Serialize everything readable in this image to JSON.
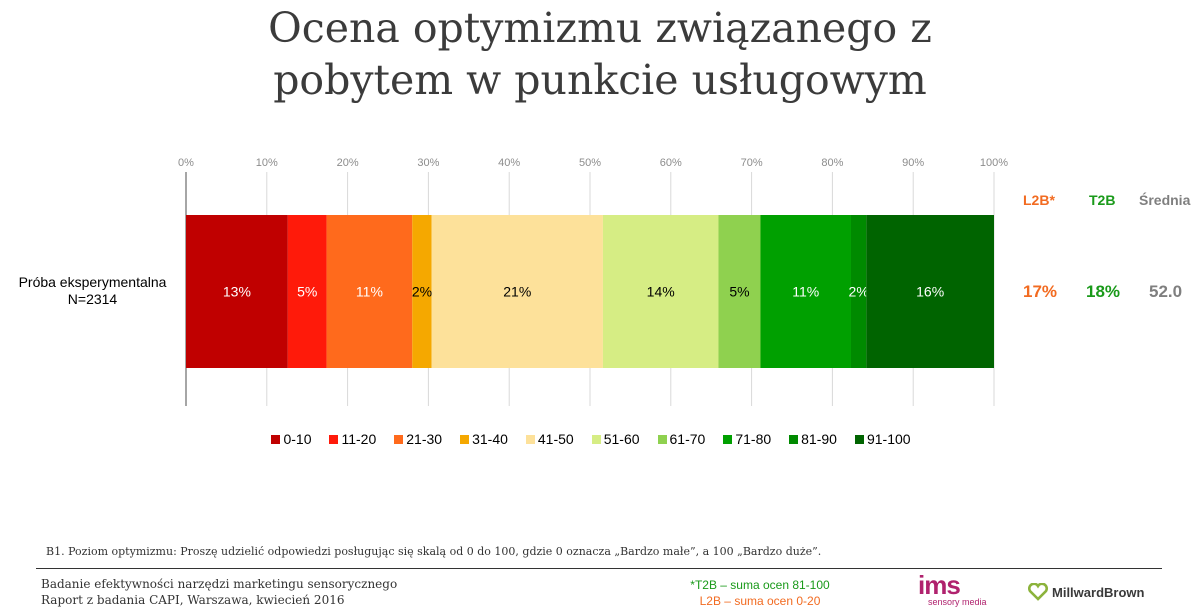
{
  "title": "Ocena optymizmu związanego z pobytem w punkcie usługowym",
  "row": {
    "name_line1": "Próba eksperymentalna",
    "name_line2": "N=2314"
  },
  "summary": {
    "headers": {
      "l2b": "L2B*",
      "t2b": "T2B",
      "mean": "Średnia"
    },
    "values": {
      "l2b": "17%",
      "t2b": "18%",
      "mean": "52.0"
    }
  },
  "colors": {
    "l2b": "#f26b21",
    "t2b": "#1a9a1a",
    "mean": "#7f7f7f"
  },
  "footnote": "B1. Poziom optymizmu: Proszę udzielić odpowiedzi posługując się skalą od 0 do 100, gdzie 0 oznacza „Bardzo małe”, a 100 „Bardzo duże”.",
  "footer": {
    "line1": "Badanie efektywności narzędzi marketingu sensorycznego",
    "line2": "Raport z badania CAPI, Warszawa, kwiecień 2016",
    "note_t2b": "*T2B – suma ocen 81-100",
    "note_l2b": "L2B – suma ocen 0-20"
  },
  "logos": {
    "ims_main": "ims",
    "ims_sub": "sensory media",
    "mb": "MillwardBrown"
  },
  "chart_data": {
    "type": "bar",
    "orientation": "horizontal",
    "stacked": true,
    "categories": [
      "Próba eksperymentalna N=2314"
    ],
    "x_ticks": [
      "0%",
      "10%",
      "20%",
      "30%",
      "40%",
      "50%",
      "60%",
      "70%",
      "80%",
      "90%",
      "100%"
    ],
    "xlim": [
      0,
      100
    ],
    "grid": true,
    "legend_position": "bottom",
    "series": [
      {
        "name": "0-10",
        "values": [
          12.6
        ],
        "label": "13%",
        "color": "#c00000",
        "label_color": "#ffffff"
      },
      {
        "name": "11-20",
        "values": [
          4.8
        ],
        "label": "5%",
        "color": "#ff1a0a",
        "label_color": "#ffffff"
      },
      {
        "name": "21-30",
        "values": [
          10.6
        ],
        "label": "11%",
        "color": "#ff6a1c",
        "label_color": "#ffffff"
      },
      {
        "name": "31-40",
        "values": [
          2.4
        ],
        "label": "2%",
        "color": "#f5a800",
        "label_color": "#000000"
      },
      {
        "name": "41-50",
        "values": [
          21.2
        ],
        "label": "21%",
        "color": "#fde19a",
        "label_color": "#000000"
      },
      {
        "name": "51-60",
        "values": [
          14.3
        ],
        "label": "14%",
        "color": "#d6ed84",
        "label_color": "#000000"
      },
      {
        "name": "61-70",
        "values": [
          5.2
        ],
        "label": "5%",
        "color": "#8fd14f",
        "label_color": "#000000"
      },
      {
        "name": "71-80",
        "values": [
          11.2
        ],
        "label": "11%",
        "color": "#00a000",
        "label_color": "#ffffff"
      },
      {
        "name": "81-90",
        "values": [
          1.9
        ],
        "label": "2%",
        "color": "#008a00",
        "label_color": "#ffffff"
      },
      {
        "name": "91-100",
        "values": [
          15.8
        ],
        "label": "16%",
        "color": "#006400",
        "label_color": "#ffffff"
      }
    ]
  }
}
